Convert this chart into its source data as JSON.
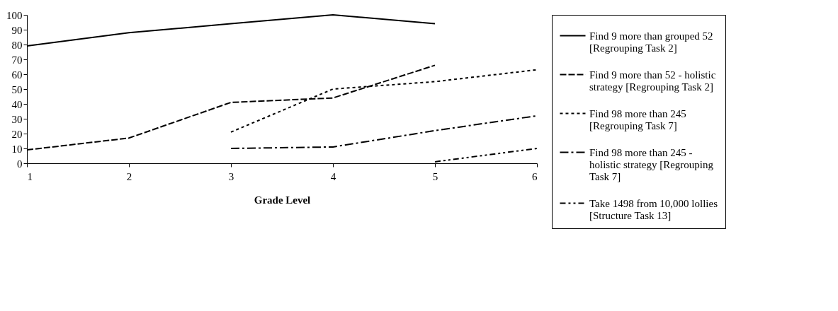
{
  "chart_data": {
    "type": "line",
    "xlabel": "Grade Level",
    "x": [
      1,
      2,
      3,
      4,
      5,
      6
    ],
    "xlim": [
      1,
      6
    ],
    "xticks": [
      1,
      2,
      3,
      4,
      5,
      6
    ],
    "ylim": [
      0,
      100
    ],
    "yticks": [
      0,
      10,
      20,
      30,
      40,
      50,
      60,
      70,
      80,
      90,
      100
    ],
    "grid": false,
    "legend": "right",
    "marker": "none",
    "series": [
      {
        "name": "Find 9 more than grouped 52 [Regrouping Task 2]",
        "color": "#000000",
        "line_style": "solid",
        "values": [
          79,
          88,
          94,
          100,
          94,
          null
        ]
      },
      {
        "name": "Find 9 more than 52 - holistic strategy [Regrouping Task 2]",
        "color": "#000000",
        "line_style": "dashed",
        "values": [
          9,
          17,
          41,
          44,
          66,
          null
        ]
      },
      {
        "name": "Find 98 more than 245 [Regrouping Task 7]",
        "color": "#000000",
        "line_style": "dotted",
        "values": [
          null,
          null,
          21,
          50,
          55,
          63
        ]
      },
      {
        "name": "Find 98 more than 245 - holistic strategy [Regrouping Task 7]",
        "color": "#000000",
        "line_style": "dashdot",
        "values": [
          null,
          null,
          10,
          11,
          22,
          32
        ]
      },
      {
        "name": "Take 1498 from 10,000 lollies [Structure Task 13]",
        "color": "#000000",
        "line_style": "dashdotdot",
        "values": [
          null,
          null,
          null,
          null,
          1,
          10
        ]
      }
    ]
  }
}
